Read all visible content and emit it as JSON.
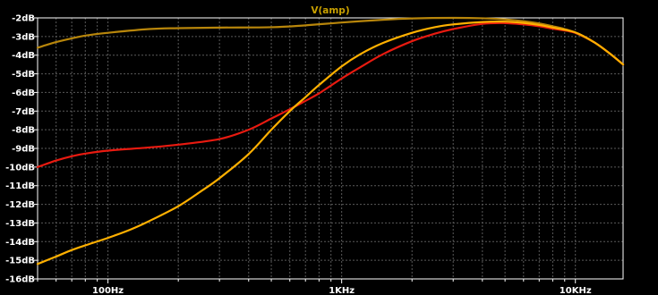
{
  "chart_data": {
    "type": "line",
    "title": "V(amp)",
    "title_color": "#c8a000",
    "x_scale": "log",
    "xlim": [
      50,
      16000
    ],
    "ylim": [
      -16,
      -2
    ],
    "y_ticks": [
      {
        "value": -2,
        "label": "-2dB"
      },
      {
        "value": -3,
        "label": "-3dB"
      },
      {
        "value": -4,
        "label": "-4dB"
      },
      {
        "value": -5,
        "label": "-5dB"
      },
      {
        "value": -6,
        "label": "-6dB"
      },
      {
        "value": -7,
        "label": "-7dB"
      },
      {
        "value": -8,
        "label": "-8dB"
      },
      {
        "value": -9,
        "label": "-9dB"
      },
      {
        "value": -10,
        "label": "-10dB"
      },
      {
        "value": -11,
        "label": "-11dB"
      },
      {
        "value": -12,
        "label": "-12dB"
      },
      {
        "value": -13,
        "label": "-13dB"
      },
      {
        "value": -14,
        "label": "-14dB"
      },
      {
        "value": -15,
        "label": "-15dB"
      },
      {
        "value": -16,
        "label": "-16dB"
      }
    ],
    "x_ticks": [
      {
        "value": 100,
        "label": "100Hz"
      },
      {
        "value": 1000,
        "label": "1KHz"
      },
      {
        "value": 10000,
        "label": "10KHz"
      }
    ],
    "grid": true,
    "grid_color": "#5a5a5a",
    "background": "#000000",
    "series": [
      {
        "color": "#b8860b",
        "points": [
          [
            50,
            -3.6
          ],
          [
            60,
            -3.3
          ],
          [
            70,
            -3.1
          ],
          [
            80,
            -2.95
          ],
          [
            100,
            -2.8
          ],
          [
            150,
            -2.6
          ],
          [
            200,
            -2.55
          ],
          [
            300,
            -2.52
          ],
          [
            500,
            -2.5
          ],
          [
            700,
            -2.4
          ],
          [
            1000,
            -2.25
          ],
          [
            1500,
            -2.1
          ],
          [
            2000,
            -2.03
          ],
          [
            3000,
            -2.0
          ],
          [
            4000,
            -2.02
          ],
          [
            5000,
            -2.08
          ],
          [
            6000,
            -2.18
          ],
          [
            7000,
            -2.3
          ],
          [
            8000,
            -2.45
          ],
          [
            9000,
            -2.6
          ],
          [
            10000,
            -2.8
          ],
          [
            12000,
            -3.3
          ],
          [
            14000,
            -3.9
          ],
          [
            16000,
            -4.5
          ]
        ]
      },
      {
        "color": "#e81a10",
        "points": [
          [
            50,
            -10.0
          ],
          [
            60,
            -9.65
          ],
          [
            70,
            -9.42
          ],
          [
            80,
            -9.28
          ],
          [
            100,
            -9.12
          ],
          [
            150,
            -8.95
          ],
          [
            200,
            -8.8
          ],
          [
            300,
            -8.5
          ],
          [
            400,
            -8.0
          ],
          [
            500,
            -7.4
          ],
          [
            600,
            -6.9
          ],
          [
            700,
            -6.45
          ],
          [
            800,
            -6.05
          ],
          [
            1000,
            -5.25
          ],
          [
            1200,
            -4.65
          ],
          [
            1500,
            -3.95
          ],
          [
            2000,
            -3.25
          ],
          [
            2500,
            -2.85
          ],
          [
            3000,
            -2.6
          ],
          [
            4000,
            -2.32
          ],
          [
            5000,
            -2.28
          ],
          [
            6000,
            -2.35
          ],
          [
            7000,
            -2.45
          ],
          [
            8000,
            -2.58
          ],
          [
            10000,
            -2.8
          ],
          [
            12000,
            -3.3
          ],
          [
            14000,
            -3.9
          ],
          [
            16000,
            -4.5
          ]
        ]
      },
      {
        "color": "#ffb000",
        "points": [
          [
            50,
            -15.2
          ],
          [
            60,
            -14.8
          ],
          [
            70,
            -14.45
          ],
          [
            80,
            -14.2
          ],
          [
            100,
            -13.8
          ],
          [
            125,
            -13.35
          ],
          [
            150,
            -12.9
          ],
          [
            200,
            -12.1
          ],
          [
            250,
            -11.3
          ],
          [
            300,
            -10.6
          ],
          [
            400,
            -9.3
          ],
          [
            500,
            -8.0
          ],
          [
            600,
            -7.0
          ],
          [
            700,
            -6.25
          ],
          [
            800,
            -5.6
          ],
          [
            1000,
            -4.6
          ],
          [
            1200,
            -3.95
          ],
          [
            1500,
            -3.35
          ],
          [
            2000,
            -2.8
          ],
          [
            2500,
            -2.5
          ],
          [
            3000,
            -2.35
          ],
          [
            4000,
            -2.22
          ],
          [
            5000,
            -2.2
          ],
          [
            6000,
            -2.27
          ],
          [
            7000,
            -2.38
          ],
          [
            8000,
            -2.52
          ],
          [
            10000,
            -2.78
          ],
          [
            12000,
            -3.3
          ],
          [
            14000,
            -3.9
          ],
          [
            16000,
            -4.5
          ]
        ]
      }
    ]
  }
}
